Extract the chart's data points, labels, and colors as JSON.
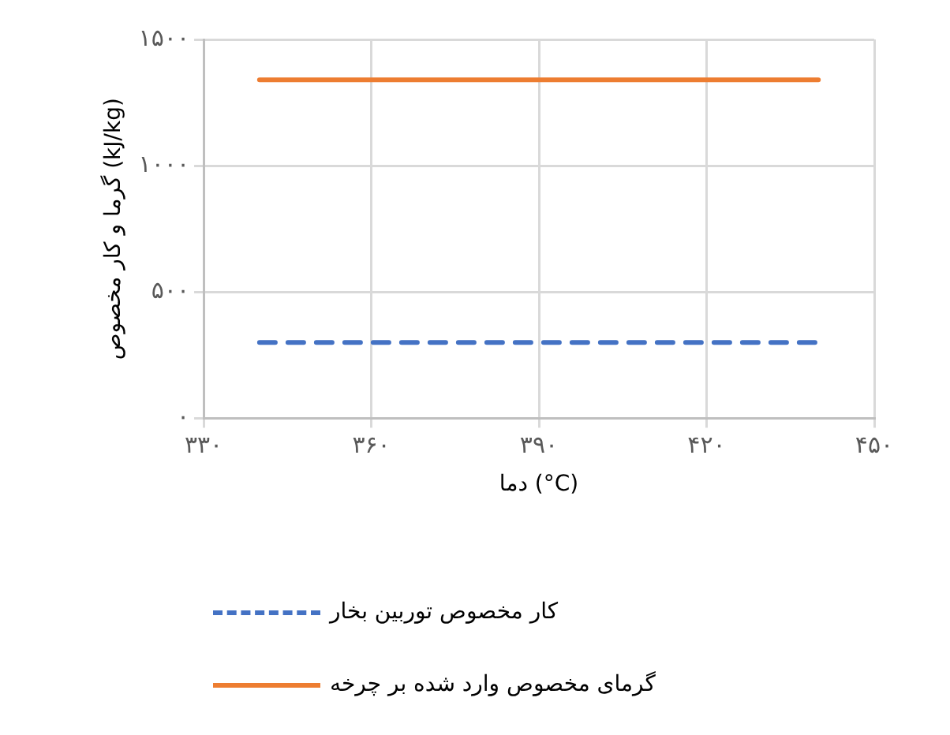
{
  "chart_data": {
    "type": "line",
    "xlabel": "دما (°C)",
    "ylabel": "گرما و کار مخصوص (kJ/kg)",
    "x": [
      340,
      440
    ],
    "series": [
      {
        "name": "کار مخصوص توربین بخار",
        "color": "#4472c4",
        "values": [
          300,
          300
        ],
        "line_style": "dashed"
      },
      {
        "name": "گرمای مخصوص وارد شده بر چرخه",
        "color": "#ed7d31",
        "values": [
          1340,
          1340
        ],
        "line_style": "solid"
      }
    ],
    "xlim": [
      330,
      450
    ],
    "xticks": [
      {
        "value": 330,
        "label": "۳۳۰"
      },
      {
        "value": 360,
        "label": "۳۶۰"
      },
      {
        "value": 390,
        "label": "۳۹۰"
      },
      {
        "value": 420,
        "label": "۴۲۰"
      },
      {
        "value": 450,
        "label": "۴۵۰"
      }
    ],
    "ylim": [
      0,
      1500
    ],
    "yticks": [
      {
        "value": 0,
        "label": "۰"
      },
      {
        "value": 500,
        "label": "۵۰۰"
      },
      {
        "value": 1000,
        "label": "۱۰۰۰"
      },
      {
        "value": 1500,
        "label": "۱۵۰۰"
      }
    ],
    "grid": true,
    "legend": "bottom",
    "marker": "none"
  }
}
